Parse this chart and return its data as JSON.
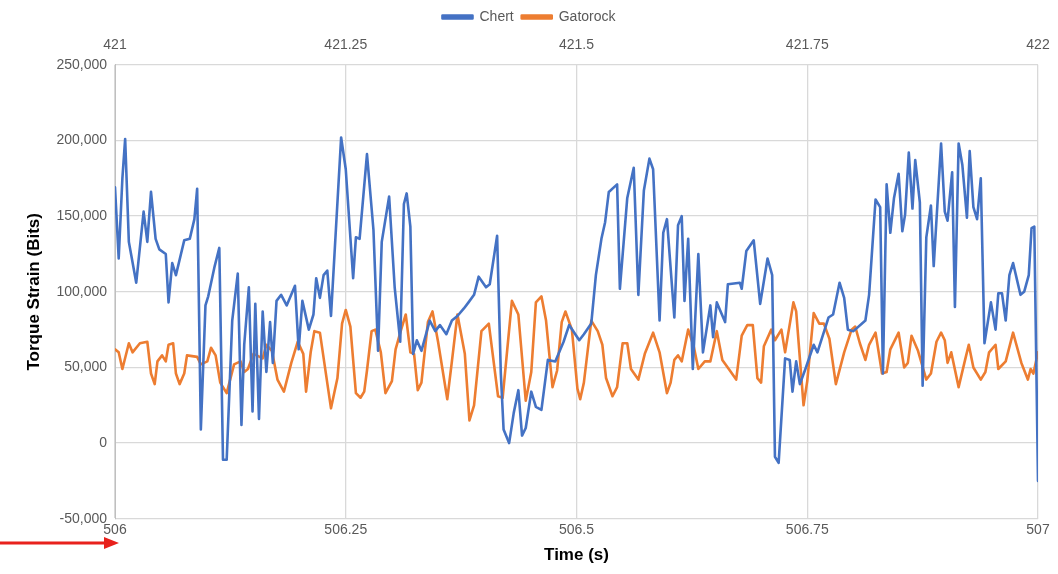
{
  "chart_data": {
    "type": "line",
    "xlabel": "Time (s)",
    "ylabel": "Torque Strain (Bits)",
    "xlim": [
      506,
      507
    ],
    "xticks": [
      506,
      506.25,
      506.5,
      506.75,
      507
    ],
    "x2lim": [
      421,
      422
    ],
    "x2ticks": [
      421,
      421.25,
      421.5,
      421.75,
      422
    ],
    "ylim": [
      -50000,
      250000
    ],
    "yticks": [
      {
        "value": -50000,
        "label": "-50,000"
      },
      {
        "value": 0,
        "label": "0"
      },
      {
        "value": 50000,
        "label": "50,000"
      },
      {
        "value": 100000,
        "label": "100,000"
      },
      {
        "value": 150000,
        "label": "150,000"
      },
      {
        "value": 200000,
        "label": "200,000"
      },
      {
        "value": 250000,
        "label": "250,000"
      }
    ],
    "grid": true,
    "legend": "top",
    "marker": "none",
    "line_style": "solid",
    "series": [
      {
        "name": "Chert",
        "color": "#4472c4",
        "x": [
          506,
          506.004,
          506.008,
          506.011,
          506.015,
          506.023,
          506.031,
          506.035,
          506.039,
          506.044,
          506.048,
          506.055,
          506.058,
          506.062,
          506.066,
          506.075,
          506.081,
          506.086,
          506.089,
          506.093,
          506.098,
          506.101,
          506.108,
          506.113,
          506.117,
          506.121,
          506.127,
          506.133,
          506.137,
          506.14,
          506.145,
          506.149,
          506.152,
          506.156,
          506.16,
          506.164,
          506.168,
          506.171,
          506.175,
          506.18,
          506.186,
          506.195,
          506.199,
          506.203,
          506.21,
          506.215,
          506.218,
          506.222,
          506.226,
          506.23,
          506.234,
          506.245,
          506.25,
          506.258,
          506.261,
          506.265,
          506.273,
          506.28,
          506.285,
          506.289,
          506.297,
          506.303,
          506.309,
          506.313,
          506.316,
          506.32,
          506.323,
          506.327,
          506.332,
          506.341,
          506.347,
          506.352,
          506.359,
          506.365,
          506.371,
          506.378,
          506.383,
          506.389,
          506.394,
          506.402,
          506.406,
          506.414,
          506.418,
          506.421,
          506.427,
          506.432,
          506.437,
          506.441,
          506.445,
          506.451,
          506.456,
          506.462,
          506.469,
          506.477,
          506.486,
          506.492,
          506.503,
          506.508,
          506.516,
          506.521,
          506.527,
          506.531,
          506.535,
          506.544,
          506.547,
          506.555,
          506.562,
          506.567,
          506.573,
          506.579,
          506.583,
          506.59,
          506.594,
          506.598,
          506.606,
          506.61,
          506.614,
          506.617,
          506.621,
          506.626,
          506.632,
          506.637,
          506.645,
          506.648,
          506.652,
          506.661,
          506.664,
          506.677,
          506.679,
          506.684,
          506.692,
          506.699,
          506.707,
          506.712,
          506.715,
          506.719,
          506.726,
          506.731,
          506.734,
          506.738,
          506.742,
          506.748,
          506.757,
          506.761,
          506.773,
          506.778,
          506.785,
          506.79,
          506.794,
          506.8,
          506.813,
          506.817,
          506.824,
          506.829,
          506.832,
          506.836,
          506.84,
          506.844,
          506.849,
          506.853,
          506.856,
          506.86,
          506.864,
          506.867,
          506.872,
          506.875,
          506.879,
          506.884,
          506.887,
          506.895,
          506.899,
          506.902,
          506.907,
          506.91,
          506.914,
          506.918,
          506.923,
          506.926,
          506.93,
          506.934,
          506.938,
          506.942,
          506.949,
          506.954,
          506.957,
          506.961,
          506.965,
          506.969,
          506.973,
          506.981,
          506.985,
          506.99,
          506.993,
          506.996,
          507
        ],
        "values": [
          169000,
          122000,
          175000,
          201000,
          133000,
          106000,
          153000,
          133000,
          166000,
          135000,
          128000,
          125000,
          93000,
          119000,
          111000,
          134000,
          135000,
          148000,
          168000,
          9000,
          91000,
          97000,
          117000,
          129000,
          -11000,
          -11000,
          81000,
          112000,
          12000,
          65000,
          103000,
          21000,
          92000,
          16000,
          87000,
          47000,
          80000,
          53000,
          94000,
          98000,
          91000,
          104000,
          62000,
          94000,
          75000,
          85000,
          109000,
          96000,
          111000,
          114000,
          84000,
          202000,
          181000,
          109000,
          136000,
          135000,
          191000,
          141000,
          61000,
          133000,
          163000,
          103000,
          67000,
          158000,
          165000,
          143000,
          59000,
          68000,
          61000,
          81000,
          74000,
          78000,
          72000,
          81000,
          84000,
          89000,
          93000,
          98000,
          110000,
          103000,
          105000,
          137000,
          46000,
          9000,
          0,
          20000,
          35000,
          5000,
          10000,
          34000,
          24000,
          22000,
          55000,
          54000,
          67000,
          78000,
          68000,
          72000,
          79000,
          111000,
          135000,
          146000,
          166000,
          171000,
          102000,
          162000,
          182000,
          98000,
          167000,
          188000,
          181000,
          81000,
          139000,
          148000,
          83000,
          144000,
          150000,
          94000,
          135000,
          49000,
          125000,
          60000,
          91000,
          70000,
          93000,
          80000,
          105000,
          106000,
          102000,
          127000,
          134000,
          92000,
          122000,
          111000,
          -9000,
          -13000,
          56000,
          55000,
          34000,
          54000,
          39000,
          49000,
          65000,
          60000,
          83000,
          85000,
          106000,
          96000,
          75000,
          74000,
          81000,
          98000,
          161000,
          156000,
          46000,
          171000,
          139000,
          162000,
          178000,
          140000,
          151000,
          192000,
          155000,
          187000,
          159000,
          38000,
          136000,
          157000,
          117000,
          198000,
          153000,
          147000,
          179000,
          90000,
          198000,
          184000,
          149000,
          193000,
          156000,
          148000,
          175000,
          66000,
          93000,
          75000,
          99000,
          99000,
          81000,
          111000,
          119000,
          98000,
          100000,
          111000,
          142000,
          143000,
          -25000
        ]
      },
      {
        "name": "Gatorock",
        "color": "#ed7d31",
        "axis": "x2",
        "x": [
          421,
          421.004,
          421.008,
          421.015,
          421.019,
          421.027,
          421.035,
          421.039,
          421.043,
          421.046,
          421.051,
          421.055,
          421.058,
          421.063,
          421.066,
          421.07,
          421.075,
          421.078,
          421.089,
          421.093,
          421.1,
          421.104,
          421.109,
          421.114,
          421.121,
          421.129,
          421.136,
          421.14,
          421.144,
          421.15,
          421.16,
          421.164,
          421.17,
          421.176,
          421.183,
          421.191,
          421.198,
          421.204,
          421.207,
          421.212,
          421.216,
          421.222,
          421.234,
          421.241,
          421.246,
          421.25,
          421.255,
          421.261,
          421.266,
          421.27,
          421.273,
          421.278,
          421.282,
          421.288,
          421.293,
          421.3,
          421.304,
          421.31,
          421.315,
          421.32,
          421.324,
          421.328,
          421.332,
          421.339,
          421.344,
          421.35,
          421.36,
          421.365,
          421.371,
          421.379,
          421.384,
          421.389,
          421.397,
          421.405,
          421.415,
          421.42,
          421.43,
          421.437,
          421.445,
          421.451,
          421.456,
          421.462,
          421.467,
          421.474,
          421.479,
          421.484,
          421.488,
          421.495,
          421.501,
          421.504,
          421.508,
          421.516,
          421.523,
          421.528,
          421.532,
          421.539,
          421.544,
          421.55,
          421.555,
          421.559,
          421.567,
          421.574,
          421.583,
          421.59,
          421.598,
          421.602,
          421.606,
          421.61,
          421.614,
          421.621,
          421.627,
          421.632,
          421.639,
          421.645,
          421.652,
          421.658,
          421.665,
          421.673,
          421.679,
          421.685,
          421.691,
          421.696,
          421.7,
          421.703,
          421.711,
          421.715,
          421.722,
          421.726,
          421.735,
          421.738,
          421.746,
          421.75,
          421.757,
          421.763,
          421.768,
          421.774,
          421.781,
          421.79,
          421.798,
          421.802,
          421.807,
          421.813,
          421.817,
          421.824,
          421.831,
          421.836,
          421.84,
          421.849,
          421.855,
          421.859,
          421.863,
          421.87,
          421.879,
          421.884,
          421.89,
          421.895,
          421.899,
          421.902,
          421.906,
          421.914,
          421.921,
          421.925,
          421.93,
          421.938,
          421.943,
          421.947,
          421.954,
          421.957,
          421.965,
          421.973,
          421.982,
          421.989,
          421.992,
          421.995,
          422
        ],
        "values": [
          62000,
          60000,
          49000,
          66000,
          60000,
          66000,
          67000,
          46000,
          39000,
          54000,
          58000,
          54000,
          65000,
          66000,
          46000,
          39000,
          46000,
          58000,
          57000,
          52000,
          54000,
          63000,
          58000,
          40000,
          33000,
          52000,
          54000,
          47000,
          49000,
          59000,
          56000,
          65000,
          61000,
          42000,
          34000,
          53000,
          67000,
          59000,
          34000,
          60000,
          74000,
          73000,
          23000,
          43000,
          79000,
          88000,
          77000,
          33000,
          30000,
          34000,
          48000,
          74000,
          75000,
          60000,
          33000,
          41000,
          62000,
          75000,
          85000,
          60000,
          59000,
          35000,
          40000,
          80000,
          87000,
          67000,
          29000,
          54000,
          85000,
          59000,
          15000,
          25000,
          74000,
          79000,
          31000,
          30000,
          94000,
          85000,
          28000,
          47000,
          93000,
          97000,
          81000,
          37000,
          48000,
          80000,
          87000,
          75000,
          36000,
          29000,
          40000,
          81000,
          74000,
          65000,
          43000,
          31000,
          37000,
          66000,
          66000,
          49000,
          42000,
          59000,
          73000,
          60000,
          33000,
          40000,
          55000,
          58000,
          54000,
          75000,
          64000,
          49000,
          54000,
          54000,
          74000,
          55000,
          49000,
          42000,
          71000,
          78000,
          78000,
          43000,
          40000,
          64000,
          75000,
          68000,
          75000,
          60000,
          93000,
          87000,
          25000,
          41000,
          86000,
          79000,
          79000,
          69000,
          39000,
          60000,
          75000,
          77000,
          66000,
          55000,
          65000,
          73000,
          46000,
          47000,
          62000,
          73000,
          50000,
          53000,
          71000,
          61000,
          42000,
          46000,
          67000,
          73000,
          68000,
          53000,
          60000,
          37000,
          55000,
          65000,
          50000,
          42000,
          47000,
          60000,
          65000,
          49000,
          54000,
          73000,
          53000,
          42000,
          49000,
          46000,
          60000
        ]
      }
    ]
  }
}
